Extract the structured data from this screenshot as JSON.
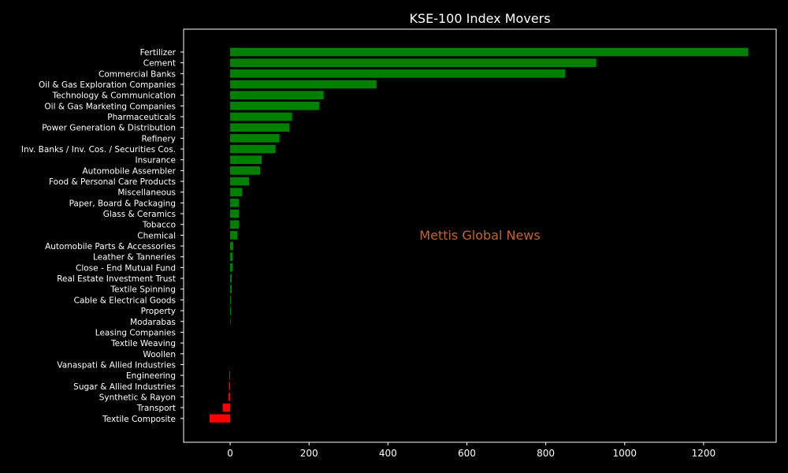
{
  "chart_data": {
    "type": "bar",
    "orientation": "horizontal",
    "title": "KSE-100 Index Movers",
    "watermark": "Mettis Global News",
    "xlim": [
      -118,
      1384
    ],
    "xticks": [
      0,
      200,
      400,
      600,
      800,
      1000,
      1200
    ],
    "grid": false,
    "colors": {
      "background": "#000000",
      "positive": "#008000",
      "negative": "#ff0000",
      "text": "#ffffff",
      "watermark": "#c0662a",
      "axes": "#ffffff"
    },
    "categories": [
      "Fertilizer",
      "Cement",
      "Commercial Banks",
      "Oil & Gas Exploration Companies",
      "Technology & Communication",
      "Oil & Gas Marketing Companies",
      "Pharmaceuticals",
      "Power Generation & Distribution",
      "Refinery",
      "Inv. Banks / Inv. Cos. / Securities Cos.",
      "Insurance",
      "Automobile Assembler",
      "Food & Personal Care Products",
      "Miscellaneous",
      "Paper, Board & Packaging",
      "Glass & Ceramics",
      "Tobacco",
      "Chemical",
      "Automobile Parts & Accessories",
      "Leather & Tanneries",
      "Close - End Mutual Fund",
      "Real Estate Investment Trust",
      "Textile Spinning",
      "Cable & Electrical Goods",
      "Property",
      "Modarabas",
      "Leasing Companies",
      "Textile Weaving",
      "Woollen",
      "Vanaspati & Allied Industries",
      "Engineering",
      "Sugar & Allied Industries",
      "Synthetic & Rayon",
      "Transport",
      "Textile Composite"
    ],
    "values": [
      1313,
      928,
      849,
      371,
      237,
      226,
      157,
      150,
      125,
      115,
      80,
      76,
      48,
      30,
      22,
      22,
      22,
      18,
      8,
      6,
      6,
      4,
      4,
      2,
      2,
      1,
      0,
      0,
      0,
      0,
      -2,
      -3,
      -4,
      -19,
      -52
    ]
  }
}
